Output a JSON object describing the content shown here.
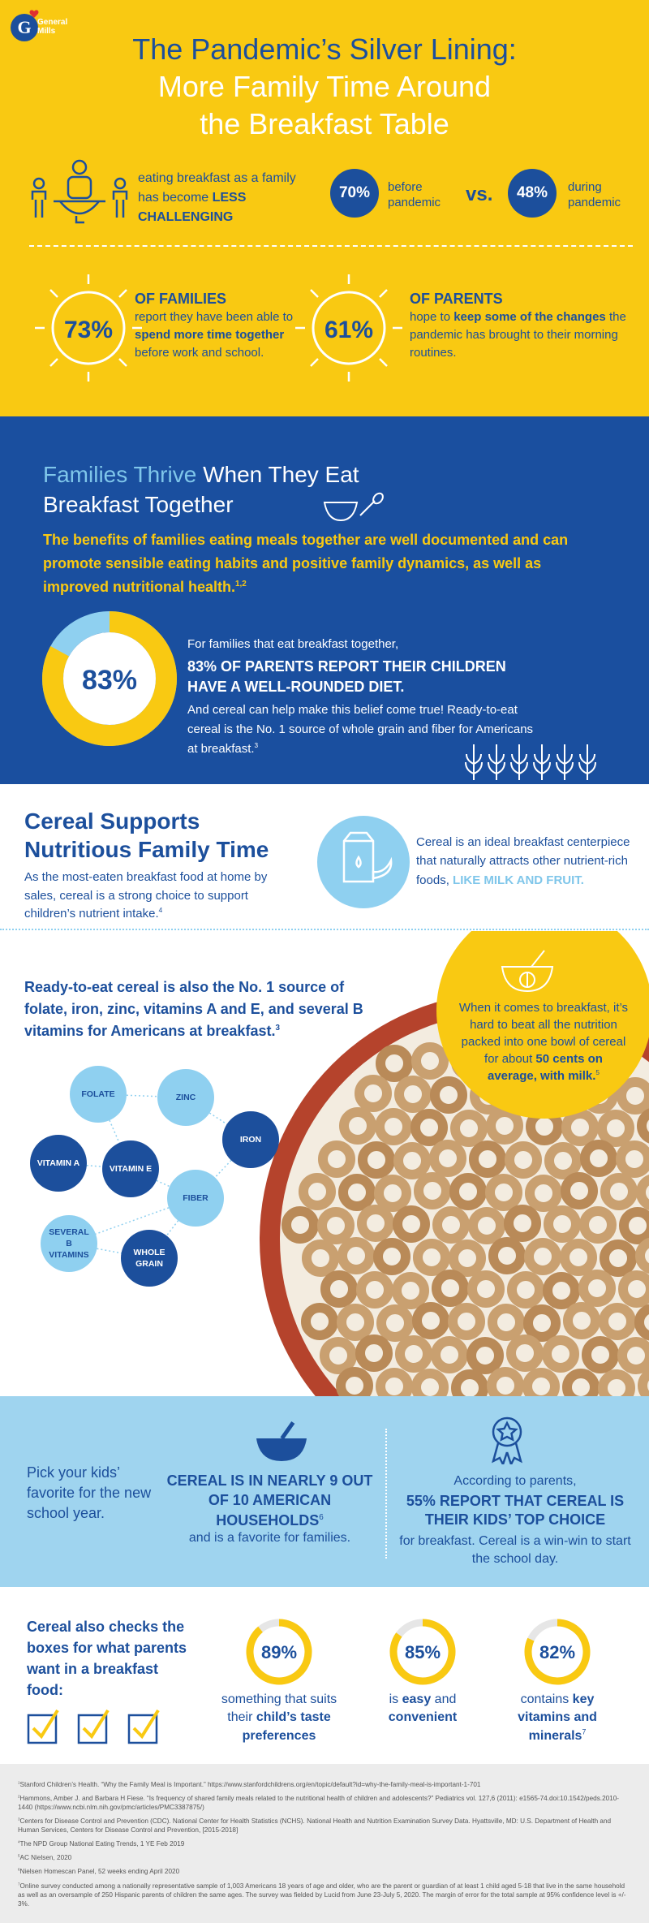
{
  "brand": {
    "logo_text": "General Mills"
  },
  "hero": {
    "title": [
      "The Pandemic’s Silver Lining:",
      "More Family Time Around",
      "the Breakfast Table"
    ]
  },
  "challenge": {
    "text": [
      {
        "text": "eating breakfast as a family has become "
      },
      {
        "text": "LESS CHALLENGING",
        "bold": true
      }
    ],
    "before": {
      "value": "70%",
      "label": "before pandemic"
    },
    "versus": "vs.",
    "during": {
      "value": "48%",
      "label": "during pandemic"
    }
  },
  "stats": [
    {
      "value": "73%",
      "heading": "OF FAMILIES",
      "text": [
        {
          "text": "report they have been able to "
        },
        {
          "text": "spend more time together",
          "bold": true
        },
        {
          "text": " before work and school."
        }
      ]
    },
    {
      "value": "61%",
      "heading": "OF PARENTS",
      "text": [
        {
          "text": "hope to "
        },
        {
          "text": "keep some of the changes",
          "bold": true
        },
        {
          "text": " the pandemic has brought to their morning routines."
        }
      ]
    }
  ],
  "thrive": {
    "heading_accent": "Families Thrive",
    "heading_rest": "When They Eat Breakfast Together",
    "intro": [
      {
        "text": "The benefits of families eating meals together are well documented and can promote sensible eating habits and positive family dynamics, as well as improved nutritional health."
      },
      {
        "text": "1,2",
        "sup": true
      }
    ],
    "donut": {
      "value": 83,
      "label": "83%"
    },
    "lead": "For families that eat breakfast together,",
    "highlight": "83% OF PARENTS REPORT THEIR CHILDREN HAVE A WELL-ROUNDED DIET.",
    "body": [
      {
        "text": "And cereal can help make this belief come true! Ready-to-eat cereal is the No. 1 source of whole grain and fiber for Americans at breakfast."
      },
      {
        "text": "3",
        "sup": true
      }
    ]
  },
  "supports": {
    "heading": "Cereal Supports Nutritious Family Time",
    "text": [
      {
        "text": "As the most-eaten breakfast food at home by sales, cereal is a strong choice to support children’s nutrient intake."
      },
      {
        "text": "4",
        "sup": true
      }
    ],
    "side": [
      {
        "text": "Cereal is an ideal breakfast centerpiece that naturally attracts other nutrient-rich foods, "
      },
      {
        "text": "LIKE MILK AND FRUIT.",
        "bold": true,
        "accent": true
      }
    ]
  },
  "nutrients": {
    "text": [
      {
        "text": "Ready-to-eat cereal is also the No. 1 source of folate, iron, zinc, vitamins A and E, and several B vitamins for Americans at breakfast."
      },
      {
        "text": "3",
        "sup": true
      }
    ],
    "callout": [
      {
        "text": "When it comes to breakfast, it’s hard to beat all the nutrition packed into one bowl of cereal for about "
      },
      {
        "text": "50 cents on average, with milk.",
        "bold": true
      },
      {
        "text": "5",
        "sup": true
      }
    ],
    "bubbles": [
      {
        "label": "FOLATE",
        "color": "#8fd0f0"
      },
      {
        "label": "ZINC",
        "color": "#8fd0f0"
      },
      {
        "label": "IRON",
        "color": "#1c4f9c"
      },
      {
        "label": "VITAMIN A",
        "color": "#1c4f9c"
      },
      {
        "label": "VITAMIN E",
        "color": "#1c4f9c"
      },
      {
        "label": "FIBER",
        "color": "#8fd0f0"
      },
      {
        "label": "SEVERAL B VITAMINS",
        "color": "#8fd0f0"
      },
      {
        "label": "WHOLE GRAIN",
        "color": "#1c4f9c"
      }
    ]
  },
  "school": {
    "left": "Pick your kids’ favorite for the new school year.",
    "middle": [
      {
        "text": "CEREAL IS IN NEARLY 9 OUT OF 10 AMERICAN HOUSEHOLDS",
        "bold": true
      },
      {
        "text": "6",
        "sup": true
      }
    ],
    "middle_sub": "and is a favorite for families.",
    "right_lead": "According to parents,",
    "right_highlight": "55% REPORT THAT CEREAL IS THEIR KIDS’ TOP CHOICE",
    "right_sub": "for breakfast. Cereal is a win-win to start the school day."
  },
  "boxes": {
    "heading": "Cereal also checks the boxes for what parents want in a breakfast food:",
    "items": [
      {
        "value": 89,
        "label": "89%",
        "text": [
          {
            "text": "something that suits their "
          },
          {
            "text": "child’s taste preferences",
            "bold": true
          }
        ]
      },
      {
        "value": 85,
        "label": "85%",
        "text": [
          {
            "text": "is "
          },
          {
            "text": "easy",
            "bold": true
          },
          {
            "text": " and "
          },
          {
            "text": "convenient",
            "bold": true
          }
        ]
      },
      {
        "value": 82,
        "label": "82%",
        "text": [
          {
            "text": "contains "
          },
          {
            "text": "key vitamins and minerals",
            "bold": true
          },
          {
            "text": "7",
            "sup": true
          }
        ]
      }
    ]
  },
  "footnotes": [
    {
      "num": "1",
      "text": "Stanford Children’s Health. “Why the Family Meal is Important.” https://www.stanfordchildrens.org/en/topic/default?id=why-the-family-meal-is-important-1-701"
    },
    {
      "num": "2",
      "text": "Hammons, Amber J. and Barbara H Fiese. “Is frequency of shared family meals related to the nutritional health of children and adolescents?” Pediatrics vol. 127,6 (2011): e1565-74.doi:10.1542/peds.2010-1440 (https://www.ncbi.nlm.nih.gov/pmc/articles/PMC3387875/)"
    },
    {
      "num": "3",
      "text": "Centers for Disease Control and Prevention (CDC). National Center for Health Statistics (NCHS). National Health and Nutrition Examination Survey Data. Hyattsville, MD: U.S. Department of Health and Human Services, Centers for Disease Control and Prevention, [2015-2018]"
    },
    {
      "num": "4",
      "text": "The NPD Group National Eating Trends, 1 YE Feb 2019"
    },
    {
      "num": "5",
      "text": "AC Nielsen, 2020"
    },
    {
      "num": "6",
      "text": "Nielsen Homescan Panel, 52 weeks ending April 2020"
    },
    {
      "num": "7",
      "text": "Online survey conducted among a nationally representative sample of 1,003 Americans 18 years of age and older, who are the parent or guardian of at least 1 child aged 5-18 that live in the same household as well as an oversample of 250 Hispanic parents of children the same ages. The survey was fielded by Lucid from June 23-July 5, 2020. The margin of error for the total sample at 95% confidence level is +/- 3%."
    }
  ]
}
